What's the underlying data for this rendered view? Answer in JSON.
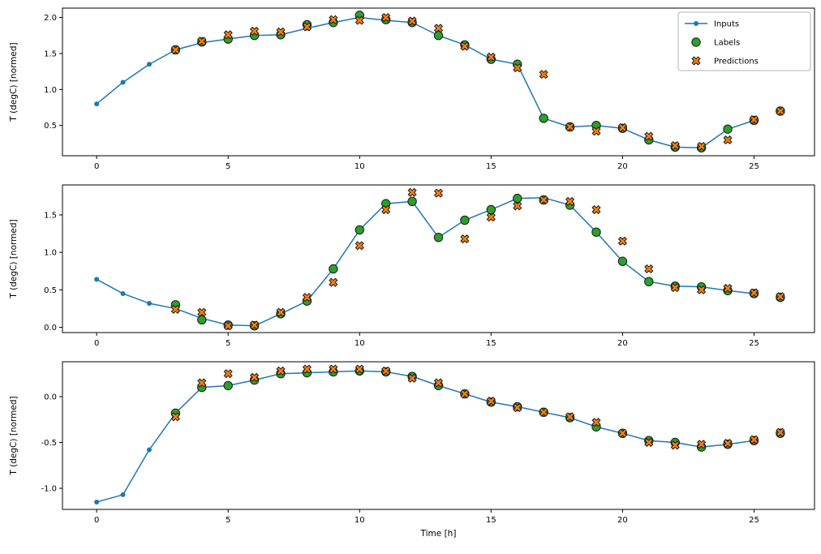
{
  "figure": {
    "xlabel": "Time [h]",
    "ylabel": "T (degC) [normed]",
    "legend": {
      "position": "top-right",
      "entries": [
        {
          "label": "Inputs",
          "marker": "line-dot",
          "color": "#1f77b4"
        },
        {
          "label": "Labels",
          "marker": "circle",
          "color": "#2ca02c"
        },
        {
          "label": "Predictions",
          "marker": "x",
          "color": "#ff7f0e"
        }
      ]
    }
  },
  "chart_data": {
    "type": "line",
    "title": "",
    "xlabel": "Time [h]",
    "ylabel": "T (degC) [normed]",
    "grid": false,
    "x_ticks": [
      0,
      5,
      10,
      15,
      20,
      25
    ],
    "xlim": [
      -1.3,
      27.3
    ],
    "colors": {
      "inputs": "#1f77b4",
      "labels": "#2ca02c",
      "predictions": "#ff7f0e",
      "marker_edge": "#1a1a1a"
    },
    "subplots": [
      {
        "ylim": [
          0.08,
          2.13
        ],
        "y_ticks": [
          0.5,
          1.0,
          1.5,
          2.0
        ],
        "inputs": {
          "x": [
            0,
            1,
            2,
            3,
            4,
            5,
            6,
            7,
            8,
            9,
            10,
            11,
            12,
            13,
            14,
            15,
            16,
            17,
            18,
            19,
            20,
            21,
            22,
            23,
            24,
            25
          ],
          "y": [
            0.8,
            1.1,
            1.35,
            1.55,
            1.65,
            1.7,
            1.75,
            1.76,
            1.85,
            1.93,
            2.0,
            1.96,
            1.93,
            1.75,
            1.62,
            1.42,
            1.35,
            0.6,
            0.48,
            0.5,
            0.46,
            0.3,
            0.2,
            0.19,
            0.45,
            0.57
          ]
        },
        "labels": {
          "x": [
            3,
            4,
            5,
            6,
            7,
            8,
            9,
            10,
            11,
            12,
            13,
            14,
            15,
            16,
            17,
            18,
            19,
            20,
            21,
            22,
            23,
            24,
            25,
            26
          ],
          "y": [
            1.55,
            1.66,
            1.7,
            1.75,
            1.76,
            1.9,
            1.93,
            2.03,
            1.97,
            1.93,
            1.75,
            1.62,
            1.42,
            1.35,
            0.6,
            0.48,
            0.5,
            0.46,
            0.3,
            0.2,
            0.19,
            0.45,
            0.57,
            0.7
          ]
        },
        "predictions": {
          "x": [
            3,
            4,
            5,
            6,
            7,
            8,
            9,
            10,
            11,
            12,
            13,
            14,
            15,
            16,
            17,
            18,
            19,
            20,
            21,
            22,
            23,
            24,
            25,
            26
          ],
          "y": [
            1.55,
            1.67,
            1.76,
            1.81,
            1.8,
            1.87,
            1.97,
            1.96,
            2.0,
            1.95,
            1.85,
            1.6,
            1.45,
            1.3,
            1.21,
            0.48,
            0.42,
            0.47,
            0.35,
            0.22,
            0.21,
            0.3,
            0.58,
            0.7
          ]
        }
      },
      {
        "ylim": [
          -0.07,
          1.9
        ],
        "y_ticks": [
          0.0,
          0.5,
          1.0,
          1.5
        ],
        "inputs": {
          "x": [
            0,
            1,
            2,
            3,
            4,
            5,
            6,
            7,
            8,
            9,
            10,
            11,
            12,
            13,
            14,
            15,
            16,
            17,
            18,
            19,
            20,
            21,
            22,
            23,
            24,
            25
          ],
          "y": [
            0.64,
            0.45,
            0.32,
            0.25,
            0.12,
            0.03,
            0.02,
            0.18,
            0.35,
            0.78,
            1.3,
            1.65,
            1.68,
            1.2,
            1.43,
            1.57,
            1.72,
            1.73,
            1.63,
            1.27,
            0.88,
            0.61,
            0.55,
            0.54,
            0.49,
            0.45
          ]
        },
        "labels": {
          "x": [
            3,
            4,
            5,
            6,
            7,
            8,
            9,
            10,
            11,
            12,
            13,
            14,
            15,
            16,
            17,
            18,
            19,
            20,
            21,
            22,
            23,
            24,
            25,
            26
          ],
          "y": [
            0.3,
            0.1,
            0.03,
            0.02,
            0.18,
            0.35,
            0.78,
            1.3,
            1.65,
            1.68,
            1.2,
            1.43,
            1.57,
            1.72,
            1.7,
            1.63,
            1.27,
            0.88,
            0.61,
            0.55,
            0.54,
            0.49,
            0.45,
            0.4
          ]
        },
        "predictions": {
          "x": [
            3,
            4,
            5,
            6,
            7,
            8,
            9,
            10,
            11,
            12,
            13,
            14,
            15,
            16,
            17,
            18,
            19,
            20,
            21,
            22,
            23,
            24,
            25,
            26
          ],
          "y": [
            0.24,
            0.2,
            0.02,
            0.03,
            0.2,
            0.4,
            0.6,
            1.09,
            1.57,
            1.8,
            1.79,
            1.18,
            1.47,
            1.62,
            1.7,
            1.68,
            1.57,
            1.15,
            0.78,
            0.53,
            0.5,
            0.52,
            0.46,
            0.41
          ]
        }
      },
      {
        "ylim": [
          -1.23,
          0.38
        ],
        "y_ticks": [
          -1.0,
          -0.5,
          0.0
        ],
        "inputs": {
          "x": [
            0,
            1,
            2,
            3,
            4,
            5,
            6,
            7,
            8,
            9,
            10,
            11,
            12,
            13,
            14,
            15,
            16,
            17,
            18,
            19,
            20,
            21,
            22,
            23,
            24,
            25
          ],
          "y": [
            -1.15,
            -1.07,
            -0.58,
            -0.18,
            0.1,
            0.12,
            0.18,
            0.25,
            0.26,
            0.27,
            0.28,
            0.27,
            0.22,
            0.12,
            0.03,
            -0.06,
            -0.11,
            -0.17,
            -0.23,
            -0.33,
            -0.4,
            -0.48,
            -0.5,
            -0.55,
            -0.52,
            -0.48
          ]
        },
        "labels": {
          "x": [
            3,
            4,
            5,
            6,
            7,
            8,
            9,
            10,
            11,
            12,
            13,
            14,
            15,
            16,
            17,
            18,
            19,
            20,
            21,
            22,
            23,
            24,
            25,
            26
          ],
          "y": [
            -0.18,
            0.1,
            0.12,
            0.18,
            0.25,
            0.26,
            0.27,
            0.28,
            0.27,
            0.22,
            0.12,
            0.03,
            -0.06,
            -0.11,
            -0.17,
            -0.23,
            -0.33,
            -0.4,
            -0.48,
            -0.5,
            -0.55,
            -0.52,
            -0.48,
            -0.4
          ]
        },
        "predictions": {
          "x": [
            3,
            4,
            5,
            6,
            7,
            8,
            9,
            10,
            11,
            12,
            13,
            14,
            15,
            16,
            17,
            18,
            19,
            20,
            21,
            22,
            23,
            24,
            25,
            26
          ],
          "y": [
            -0.22,
            0.15,
            0.25,
            0.21,
            0.28,
            0.3,
            0.3,
            0.3,
            0.28,
            0.2,
            0.15,
            0.03,
            -0.05,
            -0.12,
            -0.17,
            -0.22,
            -0.28,
            -0.4,
            -0.5,
            -0.53,
            -0.52,
            -0.51,
            -0.47,
            -0.39
          ]
        }
      }
    ]
  }
}
